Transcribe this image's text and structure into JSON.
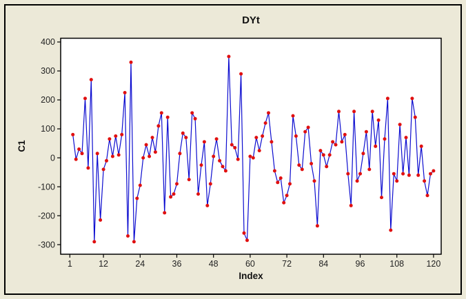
{
  "window": {
    "background": "#ECE9D8",
    "border_color": "#000000"
  },
  "chart_data": {
    "type": "line",
    "title": "DYt",
    "xlabel": "Index",
    "ylabel": "C1",
    "plot_bg": "#FFFFFF",
    "line_color": "#0B0BCF",
    "marker_color": "#E01010",
    "grid": false,
    "legend": null,
    "x_start": 2,
    "values": [
      80,
      -5,
      30,
      15,
      205,
      -35,
      270,
      -290,
      15,
      -215,
      -40,
      -10,
      65,
      5,
      75,
      10,
      80,
      225,
      -270,
      330,
      -290,
      -140,
      -95,
      0,
      45,
      5,
      70,
      20,
      110,
      155,
      -190,
      140,
      -135,
      -125,
      -90,
      15,
      85,
      70,
      -75,
      155,
      135,
      -125,
      -25,
      55,
      -165,
      -90,
      5,
      65,
      -10,
      -30,
      -45,
      350,
      45,
      35,
      -5,
      290,
      -260,
      -285,
      5,
      0,
      70,
      25,
      75,
      120,
      155,
      55,
      -45,
      -85,
      -70,
      -155,
      -130,
      -90,
      145,
      75,
      -25,
      -40,
      90,
      105,
      -20,
      -80,
      -235,
      25,
      10,
      -30,
      10,
      55,
      45,
      160,
      55,
      80,
      -55,
      -165,
      160,
      -80,
      -55,
      15,
      90,
      -40,
      160,
      40,
      130,
      -137,
      65,
      205,
      -250,
      -55,
      -80,
      115,
      -55,
      70,
      -60,
      205,
      140,
      -60,
      40,
      -80,
      -130,
      -55,
      -45
    ],
    "xticks": [
      1,
      12,
      24,
      36,
      48,
      60,
      72,
      84,
      96,
      108,
      120
    ],
    "yticks": [
      400,
      300,
      200,
      100,
      0,
      -100,
      -200,
      -300
    ],
    "xlim": [
      -2,
      122.5
    ],
    "ylim": [
      -333,
      413
    ]
  }
}
